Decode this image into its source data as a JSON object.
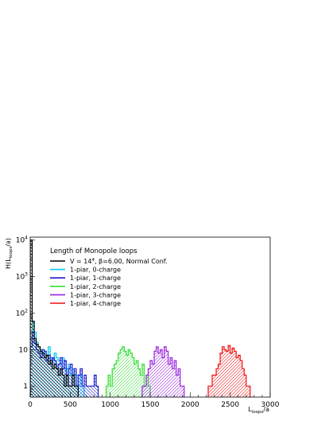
{
  "chart_data": {
    "type": "histogram",
    "legend_title": "Length of Monopole loops",
    "xlabel_main": "L",
    "xlabel_sub": "loops",
    "xlabel_tail": "/a",
    "ylabel_head": "H(L",
    "ylabel_sub": "loops",
    "ylabel_tail": "/a)",
    "xlim": [
      0,
      3000
    ],
    "ylim": [
      0.5,
      12000
    ],
    "log_y": true,
    "grid": false,
    "legend_position": "top-left",
    "x_ticks": [
      0,
      500,
      1000,
      1500,
      2000,
      2500,
      3000
    ],
    "y_ticks": [
      {
        "value": 1,
        "label": "1"
      },
      {
        "value": 10,
        "label": "10"
      },
      {
        "value": 100,
        "label": "10",
        "exp": "2"
      },
      {
        "value": 1000,
        "label": "10",
        "exp": "3"
      },
      {
        "value": 10000,
        "label": "10",
        "exp": "4"
      }
    ],
    "bin_width": 25,
    "series": [
      {
        "name": "V = 14",
        "name_sup": "4",
        "name_tail": ", β=6.00, Normal Conf.",
        "color": "#000000",
        "hatch": "diag-left",
        "x_start": 0,
        "values": [
          10000,
          60,
          20,
          14,
          12,
          9,
          8,
          6,
          7,
          4,
          5,
          3,
          4,
          3,
          2,
          3,
          2,
          1,
          2,
          1,
          1,
          2,
          1,
          1
        ]
      },
      {
        "name": "1-piar, 0-charge",
        "color": "#00ccee",
        "hatch": "diag-right",
        "x_start": 0,
        "values": [
          20,
          60,
          30,
          16,
          12,
          10,
          8,
          9,
          7,
          12,
          6,
          5,
          8,
          6,
          5,
          4,
          6,
          3,
          3,
          4,
          2,
          3,
          2,
          2,
          1,
          2,
          1
        ]
      },
      {
        "name": "1-piar, 1-charge",
        "color": "#1a1acc",
        "hatch": "diag-left",
        "x_start": 0,
        "values": [
          12,
          30,
          15,
          10,
          8,
          6,
          10,
          9,
          5,
          7,
          4,
          6,
          5,
          3,
          4,
          6,
          3,
          5,
          2,
          3,
          4,
          2,
          3,
          1,
          2,
          3,
          1,
          2,
          1,
          1,
          1,
          1,
          2,
          1
        ]
      },
      {
        "name": "1-piar, 2-charge",
        "color": "#33dd33",
        "hatch": "diag-right",
        "x_start": 950,
        "values": [
          1,
          2,
          1,
          3,
          4,
          5,
          8,
          10,
          12,
          9,
          7,
          10,
          8,
          6,
          4,
          5,
          3,
          2,
          4,
          1,
          2,
          1
        ]
      },
      {
        "name": "1-piar, 3-charge",
        "color": "#9922dd",
        "hatch": "diag-right",
        "x_start": 1400,
        "values": [
          1,
          1,
          2,
          3,
          5,
          4,
          9,
          12,
          8,
          10,
          6,
          12,
          9,
          4,
          6,
          3,
          5,
          2,
          3,
          1,
          1
        ]
      },
      {
        "name": "1-piar, 4-charge",
        "color": "#ee1111",
        "hatch": "diag-right",
        "x_start": 2225,
        "values": [
          1,
          1,
          2,
          2,
          3,
          4,
          8,
          12,
          10,
          9,
          13,
          8,
          11,
          9,
          6,
          7,
          5,
          3,
          2,
          1,
          1
        ]
      }
    ]
  }
}
